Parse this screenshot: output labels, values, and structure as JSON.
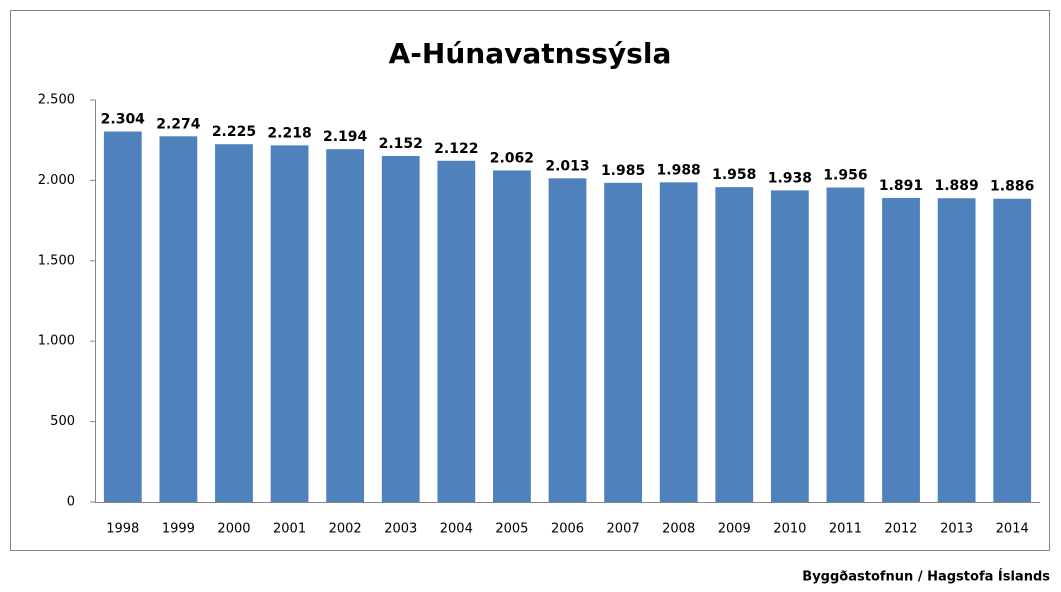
{
  "chart_data": {
    "type": "bar",
    "title": "A-Húnavatnssýsla",
    "categories": [
      "1998",
      "1999",
      "2000",
      "2001",
      "2002",
      "2003",
      "2004",
      "2005",
      "2006",
      "2007",
      "2008",
      "2009",
      "2010",
      "2011",
      "2012",
      "2013",
      "2014"
    ],
    "values": [
      2304,
      2274,
      2225,
      2218,
      2194,
      2152,
      2122,
      2062,
      2013,
      1985,
      1988,
      1958,
      1938,
      1956,
      1891,
      1889,
      1886
    ],
    "value_labels": [
      "2.304",
      "2.274",
      "2.225",
      "2.218",
      "2.194",
      "2.152",
      "2.122",
      "2.062",
      "2.013",
      "1.985",
      "1.988",
      "1.958",
      "1.938",
      "1.956",
      "1.891",
      "1.889",
      "1.886"
    ],
    "color": "#4f81bd",
    "ylim": [
      0,
      2500
    ],
    "yticks": [
      0,
      500,
      {
        "value": 1000,
        "label": "1.000"
      },
      {
        "value": 1500,
        "label": "1.500"
      },
      {
        "value": 2000,
        "label": "2.000"
      },
      {
        "value": 2500,
        "label": "2.500"
      }
    ],
    "grid": false,
    "source": "Byggðastofnun / Hagstofa Íslands"
  }
}
